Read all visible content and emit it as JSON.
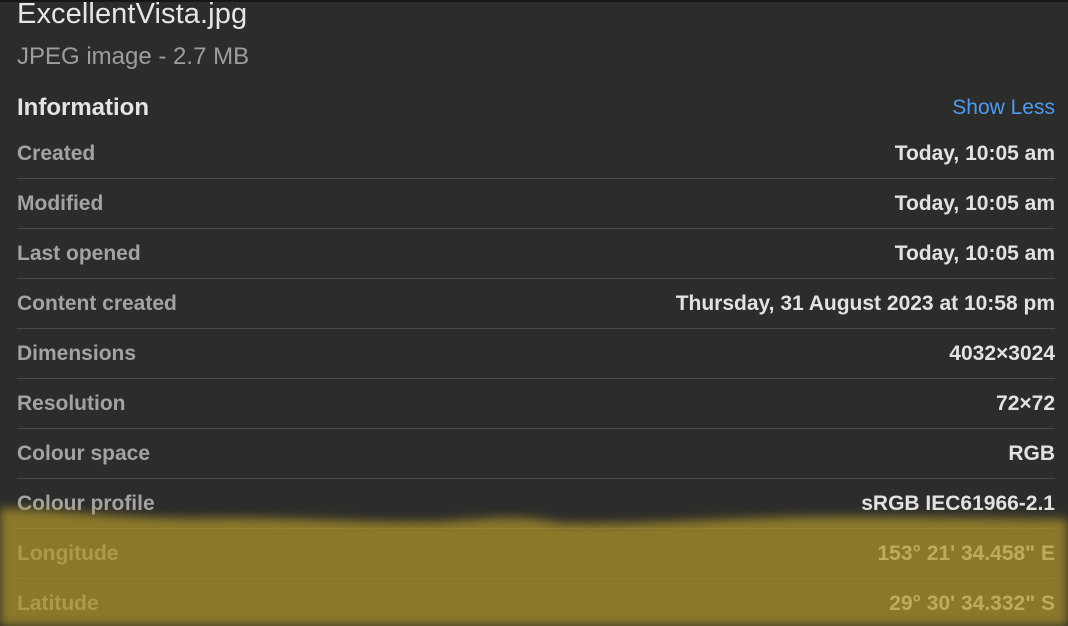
{
  "file": {
    "name": "ExcellentVista.jpg",
    "subtitle": "JPEG image - 2.7 MB"
  },
  "information": {
    "title": "Information",
    "toggle_label": "Show Less",
    "rows": [
      {
        "label": "Created",
        "value": "Today, 10:05 am"
      },
      {
        "label": "Modified",
        "value": "Today, 10:05 am"
      },
      {
        "label": "Last opened",
        "value": "Today, 10:05 am"
      },
      {
        "label": "Content created",
        "value": "Thursday, 31 August 2023 at 10:58 pm"
      },
      {
        "label": "Dimensions",
        "value": "4032×3024"
      },
      {
        "label": "Resolution",
        "value": "72×72"
      },
      {
        "label": "Colour space",
        "value": "RGB"
      },
      {
        "label": "Colour profile",
        "value": "sRGB IEC61966-2.1"
      },
      {
        "label": "Longitude",
        "value": "153° 21' 34.458\" E"
      },
      {
        "label": "Latitude",
        "value": "29° 30' 34.332\" S"
      }
    ]
  },
  "colors": {
    "background": "#2c2c2b",
    "link": "#4d9cf3",
    "highlight": "#b59a2e"
  }
}
